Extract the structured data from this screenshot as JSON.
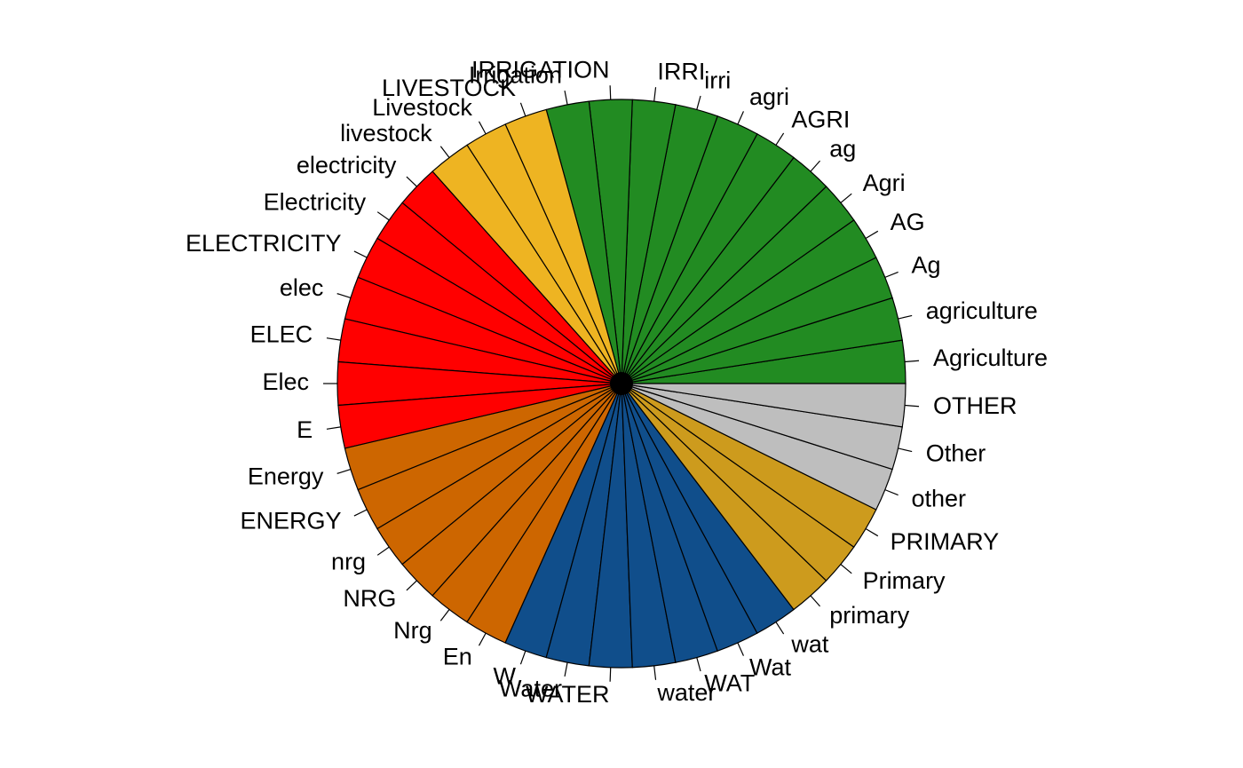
{
  "chart_data": {
    "type": "pie",
    "direction": "counterclockwise",
    "start": "3 o'clock",
    "colors": {
      "agriculture": "#228B22",
      "livestock": "#EEB422",
      "electricity": "#FF0000",
      "energy": "#CD6600",
      "water": "#104E8B",
      "primary": "#CD9B1D",
      "other": "#BEBEBE"
    },
    "slices": [
      {
        "label": "Agriculture",
        "value": 1,
        "group": "agriculture"
      },
      {
        "label": "agriculture",
        "value": 1,
        "group": "agriculture"
      },
      {
        "label": "Ag",
        "value": 1,
        "group": "agriculture"
      },
      {
        "label": "AG",
        "value": 1,
        "group": "agriculture"
      },
      {
        "label": "Agri",
        "value": 1,
        "group": "agriculture"
      },
      {
        "label": "ag",
        "value": 1,
        "group": "agriculture"
      },
      {
        "label": "AGRI",
        "value": 1,
        "group": "agriculture"
      },
      {
        "label": "agri",
        "value": 1,
        "group": "agriculture"
      },
      {
        "label": "irri",
        "value": 1,
        "group": "agriculture"
      },
      {
        "label": "IRRI",
        "value": 1,
        "group": "agriculture"
      },
      {
        "label": "IRRIGATION",
        "value": 1,
        "group": "agriculture"
      },
      {
        "label": "Irrigation",
        "value": 1,
        "group": "agriculture"
      },
      {
        "label": "LIVESTOCK",
        "value": 1,
        "group": "livestock"
      },
      {
        "label": "Livestock",
        "value": 1,
        "group": "livestock"
      },
      {
        "label": "livestock",
        "value": 1,
        "group": "livestock"
      },
      {
        "label": "electricity",
        "value": 1,
        "group": "electricity"
      },
      {
        "label": "Electricity",
        "value": 1,
        "group": "electricity"
      },
      {
        "label": "ELECTRICITY",
        "value": 1,
        "group": "electricity"
      },
      {
        "label": "elec",
        "value": 1,
        "group": "electricity"
      },
      {
        "label": "ELEC",
        "value": 1,
        "group": "electricity"
      },
      {
        "label": "Elec",
        "value": 1,
        "group": "electricity"
      },
      {
        "label": "E",
        "value": 1,
        "group": "electricity"
      },
      {
        "label": "Energy",
        "value": 1,
        "group": "energy"
      },
      {
        "label": "ENERGY",
        "value": 1,
        "group": "energy"
      },
      {
        "label": "nrg",
        "value": 1,
        "group": "energy"
      },
      {
        "label": "NRG",
        "value": 1,
        "group": "energy"
      },
      {
        "label": "Nrg",
        "value": 1,
        "group": "energy"
      },
      {
        "label": "En",
        "value": 1,
        "group": "energy"
      },
      {
        "label": "W",
        "value": 1,
        "group": "water"
      },
      {
        "label": "Water",
        "value": 1,
        "group": "water"
      },
      {
        "label": "WATER",
        "value": 1,
        "group": "water"
      },
      {
        "label": "water",
        "value": 1,
        "group": "water"
      },
      {
        "label": "WAT",
        "value": 1,
        "group": "water"
      },
      {
        "label": "Wat",
        "value": 1,
        "group": "water"
      },
      {
        "label": "wat",
        "value": 1,
        "group": "water"
      },
      {
        "label": "primary",
        "value": 1,
        "group": "primary"
      },
      {
        "label": "Primary",
        "value": 1,
        "group": "primary"
      },
      {
        "label": "PRIMARY",
        "value": 1,
        "group": "primary"
      },
      {
        "label": "other",
        "value": 1,
        "group": "other"
      },
      {
        "label": "Other",
        "value": 1,
        "group": "other"
      },
      {
        "label": "OTHER",
        "value": 1,
        "group": "other"
      }
    ]
  }
}
